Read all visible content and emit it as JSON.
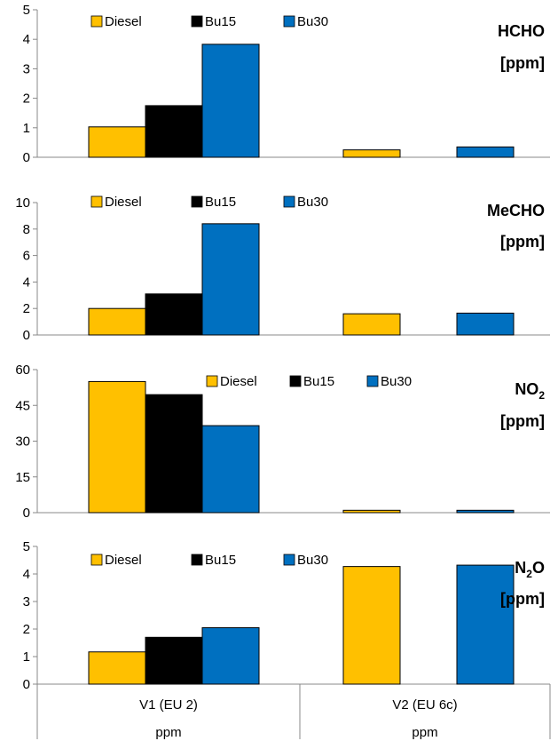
{
  "chart_data": [
    {
      "type": "bar",
      "title_main": "HCHO",
      "title_sub": "",
      "title_unit": "[ppm]",
      "categories": [
        "V1 (EU 2)",
        "V2 (EU 6c)"
      ],
      "ylim": [
        0,
        5
      ],
      "yticks": [
        "0",
        "1",
        "2",
        "3",
        "4",
        "5"
      ],
      "legend": "top-center",
      "series": [
        {
          "name": "Diesel",
          "color": "#FFC000",
          "values": [
            1.03,
            0.25
          ]
        },
        {
          "name": "Bu15",
          "color": "#000000",
          "values": [
            1.75,
            null
          ]
        },
        {
          "name": "Bu30",
          "color": "#0070C0",
          "values": [
            3.83,
            0.35
          ]
        }
      ]
    },
    {
      "type": "bar",
      "title_main": "MeCHO",
      "title_sub": "",
      "title_unit": "[ppm]",
      "categories": [
        "V1 (EU 2)",
        "V2 (EU 6c)"
      ],
      "ylim": [
        0,
        10
      ],
      "yticks": [
        "0",
        "2",
        "4",
        "6",
        "8",
        "10"
      ],
      "legend": "top-center",
      "series": [
        {
          "name": "Diesel",
          "color": "#FFC000",
          "values": [
            2.0,
            1.6
          ]
        },
        {
          "name": "Bu15",
          "color": "#000000",
          "values": [
            3.1,
            null
          ]
        },
        {
          "name": "Bu30",
          "color": "#0070C0",
          "values": [
            8.4,
            1.65
          ]
        }
      ]
    },
    {
      "type": "bar",
      "title_main": "NO",
      "title_sub": "2",
      "title_unit": "[ppm]",
      "categories": [
        "V1 (EU 2)",
        "V2 (EU 6c)"
      ],
      "ylim": [
        0,
        60
      ],
      "yticks": [
        "0",
        "15",
        "30",
        "45",
        "60"
      ],
      "legend": "top-center",
      "series": [
        {
          "name": "Diesel",
          "color": "#FFC000",
          "values": [
            55,
            1.0
          ]
        },
        {
          "name": "Bu15",
          "color": "#000000",
          "values": [
            49.5,
            null
          ]
        },
        {
          "name": "Bu30",
          "color": "#0070C0",
          "values": [
            36.5,
            1.0
          ]
        }
      ]
    },
    {
      "type": "bar",
      "title_main": "N",
      "title_sub": "2",
      "title_unit": "[ppm]",
      "title_after": "O",
      "categories": [
        "V1 (EU 2)",
        "V2 (EU 6c)"
      ],
      "sub_categories": [
        "ppm",
        "ppm"
      ],
      "ylim": [
        0,
        5
      ],
      "yticks": [
        "0",
        "1",
        "2",
        "3",
        "4",
        "5"
      ],
      "legend": "top-center",
      "series": [
        {
          "name": "Diesel",
          "color": "#FFC000",
          "values": [
            1.17,
            4.27
          ]
        },
        {
          "name": "Bu15",
          "color": "#000000",
          "values": [
            1.7,
            null
          ]
        },
        {
          "name": "Bu30",
          "color": "#0070C0",
          "values": [
            2.05,
            4.32
          ]
        }
      ]
    }
  ]
}
